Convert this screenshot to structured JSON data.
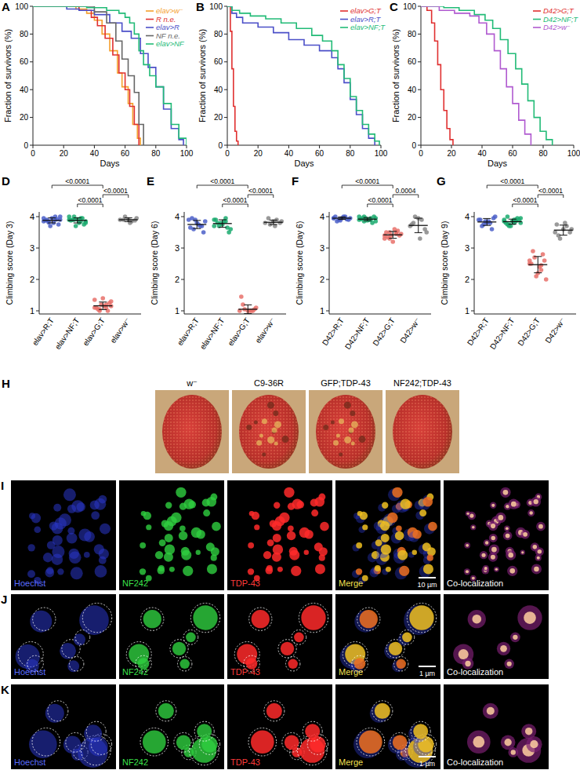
{
  "chart_data": [
    {
      "panel": "A",
      "type": "line",
      "x_label": "Days",
      "y_label": "Fraction of survivors (%)",
      "xlim": [
        0,
        100
      ],
      "ylim": [
        0,
        100
      ],
      "xticks": [
        0,
        20,
        40,
        60,
        80,
        100
      ],
      "yticks": [
        0,
        20,
        40,
        60,
        80,
        100
      ],
      "legend": "top-right",
      "line_style": "step",
      "series": [
        {
          "name": "elav>w⁻",
          "color": "#f5a02d",
          "x": [
            0,
            28,
            35,
            40,
            45,
            50,
            55,
            58,
            62,
            65,
            68,
            70
          ],
          "values": [
            100,
            98,
            95,
            90,
            80,
            68,
            52,
            42,
            30,
            15,
            5,
            0
          ]
        },
        {
          "name": "R n.e.",
          "color": "#e03030",
          "x": [
            0,
            30,
            38,
            42,
            47,
            52,
            56,
            60,
            63,
            66,
            69
          ],
          "values": [
            100,
            97,
            92,
            86,
            77,
            65,
            52,
            40,
            28,
            15,
            0
          ]
        },
        {
          "name": "elav>R",
          "color": "#4b4fc8",
          "x": [
            0,
            22,
            30,
            40,
            50,
            58,
            64,
            70,
            75,
            80,
            85,
            90,
            95,
            98
          ],
          "values": [
            100,
            98,
            97,
            94,
            88,
            82,
            77,
            66,
            56,
            42,
            26,
            12,
            4,
            0
          ]
        },
        {
          "name": "NF n.e.",
          "color": "#666666",
          "x": [
            0,
            40,
            48,
            54,
            58,
            62,
            66,
            69,
            72
          ],
          "values": [
            100,
            96,
            88,
            75,
            62,
            50,
            38,
            15,
            0
          ]
        },
        {
          "name": "elav>NF",
          "color": "#22bb77",
          "x": [
            0,
            35,
            48,
            56,
            60,
            63,
            66,
            69,
            72,
            76,
            80,
            85,
            90,
            95,
            100
          ],
          "values": [
            100,
            99,
            97,
            95,
            92,
            88,
            80,
            68,
            58,
            50,
            42,
            30,
            15,
            5,
            0
          ]
        }
      ]
    },
    {
      "panel": "B",
      "type": "line",
      "x_label": "Days",
      "y_label": "Fraction of survivors (%)",
      "xlim": [
        0,
        100
      ],
      "ylim": [
        0,
        100
      ],
      "xticks": [
        0,
        20,
        40,
        60,
        80,
        100
      ],
      "yticks": [
        0,
        20,
        40,
        60,
        80,
        100
      ],
      "legend": "top-right",
      "line_style": "step",
      "series": [
        {
          "name": "elav>G;T",
          "color": "#e03030",
          "x": [
            0,
            2,
            3,
            4,
            5,
            6,
            7
          ],
          "values": [
            100,
            82,
            55,
            28,
            10,
            3,
            0
          ]
        },
        {
          "name": "elav>R;T",
          "color": "#4b4fc8",
          "x": [
            0,
            3,
            6,
            10,
            20,
            30,
            40,
            50,
            60,
            68,
            72,
            76,
            80,
            84,
            88,
            92,
            96
          ],
          "values": [
            100,
            95,
            92,
            88,
            85,
            81,
            76,
            72,
            68,
            63,
            55,
            45,
            33,
            22,
            12,
            5,
            0
          ]
        },
        {
          "name": "elav>NF;T",
          "color": "#22bb77",
          "x": [
            0,
            3,
            8,
            15,
            25,
            35,
            45,
            55,
            62,
            68,
            72,
            76,
            80,
            84,
            88,
            92,
            96,
            99
          ],
          "values": [
            100,
            97,
            95,
            93,
            91,
            88,
            84,
            79,
            75,
            68,
            58,
            48,
            35,
            25,
            15,
            8,
            3,
            0
          ]
        }
      ]
    },
    {
      "panel": "C",
      "type": "line",
      "x_label": "Days",
      "y_label": "Fraction of survivors (%)",
      "xlim": [
        0,
        100
      ],
      "ylim": [
        0,
        100
      ],
      "xticks": [
        0,
        20,
        40,
        60,
        80,
        100
      ],
      "yticks": [
        0,
        20,
        40,
        60,
        80,
        100
      ],
      "legend": "top-right",
      "line_style": "step",
      "series": [
        {
          "name": "D42>G;T",
          "color": "#e03030",
          "x": [
            0,
            4,
            7,
            9,
            11,
            13,
            15,
            17,
            19,
            21
          ],
          "values": [
            100,
            97,
            88,
            75,
            58,
            40,
            25,
            12,
            4,
            0
          ]
        },
        {
          "name": "D42>NF;T",
          "color": "#22bb77",
          "x": [
            0,
            15,
            25,
            35,
            42,
            47,
            52,
            57,
            62,
            66,
            70,
            74,
            78,
            82,
            86
          ],
          "values": [
            100,
            99,
            97,
            94,
            90,
            84,
            76,
            66,
            55,
            44,
            32,
            20,
            10,
            4,
            0
          ]
        },
        {
          "name": "D42>w⁻",
          "color": "#b05ad0",
          "x": [
            0,
            12,
            22,
            32,
            38,
            43,
            48,
            52,
            56,
            60,
            64,
            68,
            72
          ],
          "values": [
            100,
            97,
            95,
            93,
            88,
            80,
            68,
            55,
            42,
            30,
            18,
            8,
            0
          ]
        }
      ]
    },
    {
      "panel": "D",
      "type": "dot",
      "y_label": "Climbing score (Day 3)",
      "ylim": [
        0.9,
        4.15
      ],
      "yticks": [
        1,
        2,
        3,
        4
      ],
      "categories": [
        "elav>R;T",
        "elav>NF;T",
        "elav>G;T",
        "elav>w⁻"
      ],
      "colors": [
        "#4b5fc8",
        "#1aaa6e",
        "#e8706a",
        "#888888"
      ],
      "points": [
        [
          3.95,
          3.9,
          3.85,
          4.0,
          3.8,
          3.9,
          3.75,
          3.95,
          3.88,
          3.92,
          3.7,
          3.85,
          4.0,
          3.82,
          3.9
        ],
        [
          3.9,
          3.95,
          4.0,
          3.85,
          3.8,
          3.9,
          3.75,
          3.92,
          3.88,
          3.95,
          3.7,
          4.0,
          3.85,
          3.9,
          3.8
        ],
        [
          1.1,
          1.2,
          1.0,
          1.3,
          1.15,
          1.05,
          1.25,
          1.4,
          1.1,
          1.0,
          1.2,
          1.35,
          1.1,
          1.05,
          1.15
        ],
        [
          3.9,
          3.85,
          4.0,
          3.95,
          3.8,
          3.9,
          3.88,
          3.92
        ]
      ],
      "values": [
        3.88,
        3.88,
        1.16,
        3.9
      ],
      "errors": [
        0.08,
        0.08,
        0.12,
        0.06
      ],
      "comparisons": [
        {
          "from": 0,
          "to": 2,
          "label": "<0.0001"
        },
        {
          "from": 1,
          "to": 2,
          "label": "<0.0001"
        },
        {
          "from": 2,
          "to": 3,
          "label": "<0.0001"
        }
      ]
    },
    {
      "panel": "E",
      "type": "dot",
      "y_label": "Climbing score  (Day 6)",
      "ylim": [
        0.9,
        4.15
      ],
      "yticks": [
        1,
        2,
        3,
        4
      ],
      "categories": [
        "elav>R;T",
        "elav>NF;T",
        "elav>G;T",
        "elav>w⁻"
      ],
      "colors": [
        "#4b5fc8",
        "#1aaa6e",
        "#e8706a",
        "#888888"
      ],
      "points": [
        [
          3.9,
          3.7,
          3.6,
          3.85,
          3.75,
          3.95,
          3.5,
          3.8,
          3.65,
          3.7,
          3.9
        ],
        [
          3.9,
          3.95,
          3.7,
          3.6,
          3.85,
          3.8,
          3.5,
          3.75,
          3.9,
          3.65,
          3.8,
          3.7,
          3.85
        ],
        [
          1.0,
          1.0,
          1.05,
          1.1,
          1.0,
          1.2,
          1.05,
          1.0,
          1.45,
          1.0
        ],
        [
          3.8,
          3.9,
          3.75,
          3.85,
          3.7,
          3.95,
          3.8,
          3.85
        ]
      ],
      "values": [
        3.75,
        3.78,
        1.05,
        3.82
      ],
      "errors": [
        0.13,
        0.12,
        0.14,
        0.07
      ],
      "comparisons": [
        {
          "from": 0,
          "to": 2,
          "label": "<0.0001"
        },
        {
          "from": 1,
          "to": 2,
          "label": "<0.0001"
        },
        {
          "from": 2,
          "to": 3,
          "label": "<0.0001"
        }
      ]
    },
    {
      "panel": "F",
      "type": "dot",
      "y_label": "Climbing score (Day 6)",
      "ylim": [
        0.9,
        4.15
      ],
      "yticks": [
        1,
        2,
        3,
        4
      ],
      "categories": [
        "D42>R;T",
        "D42>NF;T",
        "D42>G;T",
        "D42>w⁻"
      ],
      "colors": [
        "#4b5fc8",
        "#1aaa6e",
        "#e8706a",
        "#888888"
      ],
      "points": [
        [
          3.95,
          4.0,
          3.9,
          3.95,
          4.0,
          3.85,
          3.9,
          3.95,
          4.0,
          3.92,
          3.88,
          3.95
        ],
        [
          3.9,
          3.95,
          4.0,
          3.85,
          3.9,
          3.95,
          4.0,
          3.88,
          3.92,
          3.8,
          3.95,
          4.0,
          3.9,
          3.85,
          3.95
        ],
        [
          3.4,
          3.5,
          3.3,
          3.45,
          3.6,
          3.35,
          3.4,
          3.2,
          3.5,
          3.55,
          3.4,
          3.3,
          3.45,
          3.5
        ],
        [
          3.7,
          3.9,
          4.0,
          3.5,
          3.3,
          3.8,
          3.6,
          3.95,
          3.75
        ]
      ],
      "values": [
        3.95,
        3.92,
        3.42,
        3.72
      ],
      "errors": [
        0.04,
        0.05,
        0.11,
        0.23
      ],
      "comparisons": [
        {
          "from": 0,
          "to": 2,
          "label": "<0.0001"
        },
        {
          "from": 1,
          "to": 2,
          "label": "<0.0001"
        },
        {
          "from": 2,
          "to": 3,
          "label": "0.0004"
        }
      ]
    },
    {
      "panel": "G",
      "type": "dot",
      "y_label": "Climbing score (Day 9)",
      "ylim": [
        0.9,
        4.15
      ],
      "yticks": [
        1,
        2,
        3,
        4
      ],
      "categories": [
        "D42>R;T",
        "D42>NF;T",
        "D42>G;T",
        "D42>w⁻"
      ],
      "colors": [
        "#4b5fc8",
        "#1aaa6e",
        "#e8706a",
        "#888888"
      ],
      "points": [
        [
          3.9,
          3.8,
          3.75,
          4.0,
          3.85,
          3.7,
          3.95,
          3.8,
          3.9,
          3.6,
          3.85
        ],
        [
          3.85,
          3.9,
          3.7,
          3.95,
          3.8,
          3.75,
          3.9,
          3.85,
          3.8,
          3.95,
          3.7,
          3.9,
          3.85,
          3.75,
          3.8,
          3.9,
          4.0
        ],
        [
          2.5,
          2.3,
          2.7,
          2.0,
          2.4,
          2.9,
          2.6,
          2.2,
          2.5,
          2.8,
          2.1,
          2.6,
          2.45
        ],
        [
          3.5,
          3.7,
          3.3,
          3.6,
          3.8,
          3.4,
          3.5,
          3.6,
          3.75
        ]
      ],
      "values": [
        3.83,
        3.84,
        2.47,
        3.57
      ],
      "errors": [
        0.11,
        0.08,
        0.26,
        0.16
      ],
      "comparisons": [
        {
          "from": 0,
          "to": 2,
          "label": "<0.0001"
        },
        {
          "from": 1,
          "to": 2,
          "label": "<0.0001"
        },
        {
          "from": 2,
          "to": 3,
          "label": "<0.0001"
        }
      ]
    }
  ],
  "figure": {
    "eyes": {
      "panel": "H",
      "images": [
        "w⁻",
        "C9-36R",
        "GFP;TDP-43",
        "NF242;TDP-43"
      ]
    },
    "microscopy": [
      {
        "panel": "I",
        "channels": [
          "Hoechst",
          "NF242",
          "TDP-43",
          "Merge",
          "Co-localization"
        ],
        "scale_bar": "10 µm"
      },
      {
        "panel": "J",
        "channels": [
          "Hoechst",
          "NF242",
          "TDP-43",
          "Merge",
          "Co-localization"
        ],
        "scale_bar": "1 µm"
      },
      {
        "panel": "K",
        "channels": [
          "Hoechst",
          "NF242",
          "TDP-43",
          "Merge",
          "Co-localization"
        ],
        "scale_bar": "1 µm"
      }
    ]
  }
}
